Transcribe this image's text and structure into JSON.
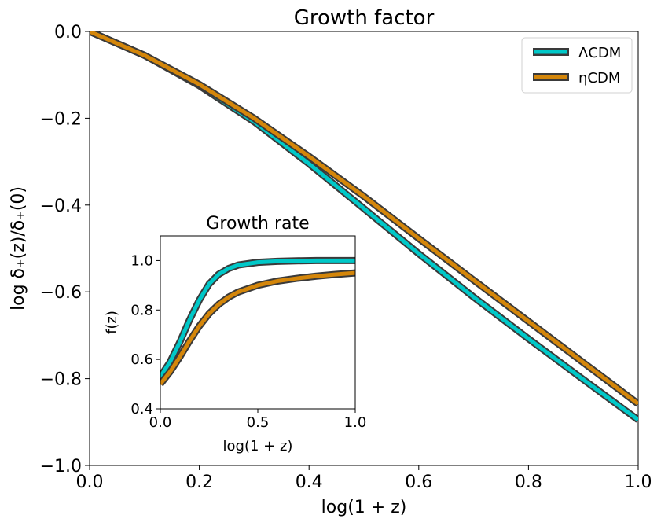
{
  "chart_data": [
    {
      "type": "line",
      "title": "Growth factor",
      "xlabel": "log(1 + z)",
      "ylabel": "log δ₊(z)/δ₊(0)",
      "xlim": [
        0.0,
        1.0
      ],
      "ylim": [
        -1.0,
        0.0
      ],
      "xticks": [
        "0.0",
        "0.2",
        "0.4",
        "0.6",
        "0.8",
        "1.0"
      ],
      "yticks": [
        "0.0",
        "−0.2",
        "−0.4",
        "−0.6",
        "−0.8",
        "−1.0"
      ],
      "legend": "top-right",
      "series": [
        {
          "name": "ΛCDM",
          "color": "#00c8c8",
          "x": [
            0.0,
            0.1,
            0.2,
            0.3,
            0.4,
            0.5,
            0.6,
            0.7,
            0.8,
            0.9,
            1.0
          ],
          "y": [
            0.0,
            -0.055,
            -0.125,
            -0.208,
            -0.305,
            -0.408,
            -0.512,
            -0.612,
            -0.708,
            -0.802,
            -0.895
          ]
        },
        {
          "name": "ηCDM",
          "color": "#d4860a",
          "x": [
            0.0,
            0.1,
            0.2,
            0.3,
            0.4,
            0.5,
            0.6,
            0.7,
            0.8,
            0.9,
            1.0
          ],
          "y": [
            0.0,
            -0.055,
            -0.122,
            -0.2,
            -0.288,
            -0.38,
            -0.477,
            -0.573,
            -0.668,
            -0.763,
            -0.858
          ]
        }
      ]
    },
    {
      "type": "line",
      "title": "Growth rate",
      "xlabel": "log(1 + z)",
      "ylabel": "f(z)",
      "xlim": [
        0.0,
        1.0
      ],
      "ylim": [
        0.4,
        1.1
      ],
      "xticks": [
        "0.0",
        "0.5",
        "1.0"
      ],
      "yticks": [
        "0.4",
        "0.6",
        "0.8",
        "1.0"
      ],
      "series": [
        {
          "name": "ΛCDM",
          "color": "#00c8c8",
          "x": [
            0.0,
            0.05,
            0.1,
            0.15,
            0.2,
            0.25,
            0.3,
            0.35,
            0.4,
            0.5,
            0.6,
            0.7,
            0.8,
            0.9,
            1.0
          ],
          "y": [
            0.53,
            0.59,
            0.67,
            0.76,
            0.84,
            0.905,
            0.945,
            0.968,
            0.982,
            0.993,
            0.997,
            0.999,
            1.0,
            1.0,
            1.0
          ]
        },
        {
          "name": "ηCDM",
          "color": "#d4860a",
          "x": [
            0.0,
            0.05,
            0.1,
            0.15,
            0.2,
            0.25,
            0.3,
            0.35,
            0.4,
            0.5,
            0.6,
            0.7,
            0.8,
            0.9,
            1.0
          ],
          "y": [
            0.5,
            0.55,
            0.61,
            0.675,
            0.735,
            0.785,
            0.823,
            0.852,
            0.873,
            0.9,
            0.917,
            0.928,
            0.937,
            0.944,
            0.95
          ]
        }
      ]
    }
  ]
}
